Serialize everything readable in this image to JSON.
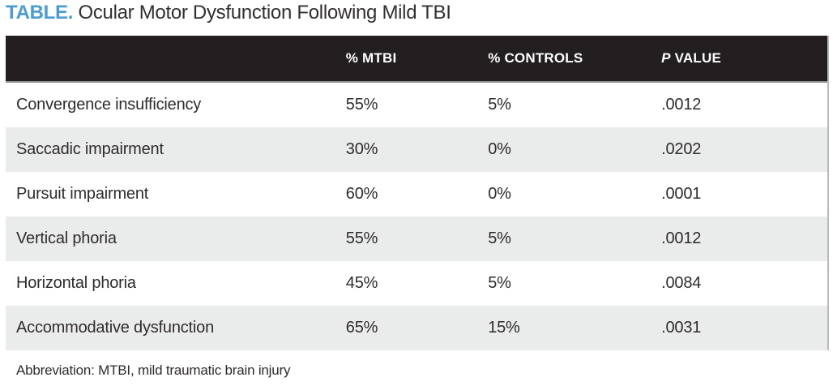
{
  "title": {
    "tag": "TABLE.",
    "text": " Ocular Motor Dysfunction Following Mild TBI"
  },
  "table": {
    "header": {
      "condition": "",
      "mtbi": "% MTBI",
      "controls": "% CONTROLS",
      "p_italic": "P",
      "p_rest": " VALUE"
    },
    "rows": [
      {
        "condition": "Convergence insufficiency",
        "mtbi": "55%",
        "controls": "5%",
        "p": ".0012"
      },
      {
        "condition": "Saccadic impairment",
        "mtbi": "30%",
        "controls": "0%",
        "p": ".0202"
      },
      {
        "condition": "Pursuit impairment",
        "mtbi": "60%",
        "controls": "0%",
        "p": ".0001"
      },
      {
        "condition": "Vertical phoria",
        "mtbi": "55%",
        "controls": "5%",
        "p": ".0012"
      },
      {
        "condition": "Horizontal phoria",
        "mtbi": "45%",
        "controls": "5%",
        "p": ".0084"
      },
      {
        "condition": "Accommodative dysfunction",
        "mtbi": "65%",
        "controls": "15%",
        "p": ".0031"
      }
    ]
  },
  "footnote": "Abbreviation: MTBI, mild traumatic brain injury",
  "colors": {
    "accent_blue": "#4a9cd5",
    "header_bg": "#231f20",
    "header_text": "#ffffff",
    "row_alt_bg": "#eaebeb",
    "body_text": "#302c2d"
  },
  "chart_data": {
    "type": "table",
    "title": "TABLE. Ocular Motor Dysfunction Following Mild TBI",
    "columns": [
      "",
      "% MTBI",
      "% CONTROLS",
      "P VALUE"
    ],
    "rows": [
      [
        "Convergence insufficiency",
        "55%",
        "5%",
        ".0012"
      ],
      [
        "Saccadic impairment",
        "30%",
        "0%",
        ".0202"
      ],
      [
        "Pursuit impairment",
        "60%",
        "0%",
        ".0001"
      ],
      [
        "Vertical phoria",
        "55%",
        "5%",
        ".0012"
      ],
      [
        "Horizontal phoria",
        "45%",
        "5%",
        ".0084"
      ],
      [
        "Accommodative dysfunction",
        "65%",
        "15%",
        ".0031"
      ]
    ],
    "footnote": "Abbreviation: MTBI, mild traumatic brain injury",
    "layout_hints": "black header row, zebra striping on even rows, all columns left-aligned"
  }
}
